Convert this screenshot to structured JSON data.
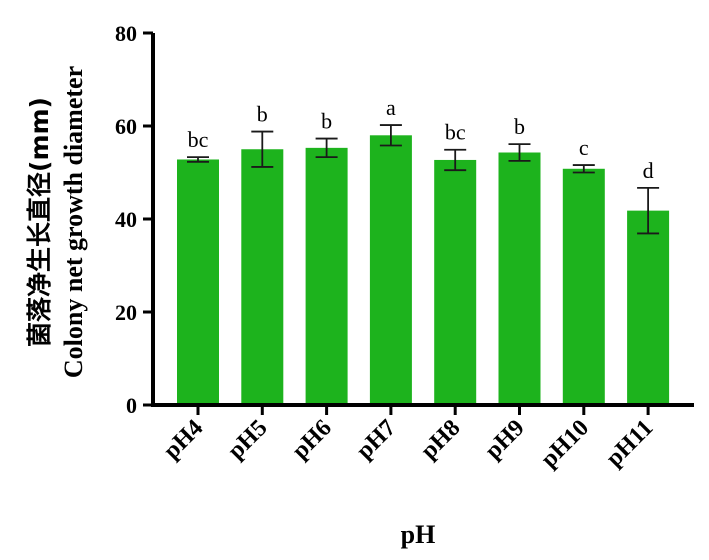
{
  "chart_data": {
    "type": "bar",
    "categories": [
      "pH4",
      "pH5",
      "pH6",
      "pH7",
      "pH8",
      "pH9",
      "pH10",
      "pH11"
    ],
    "values": [
      52.8,
      55.0,
      55.3,
      58.0,
      52.7,
      54.3,
      50.8,
      41.8
    ],
    "errors": [
      0.5,
      3.8,
      2.0,
      2.2,
      2.2,
      1.8,
      0.8,
      4.9
    ],
    "significance": [
      "bc",
      "b",
      "b",
      "a",
      "bc",
      "b",
      "c",
      "d"
    ],
    "xlabel": "pH",
    "ylabel_cn": "菌落净生长直径(mm)",
    "ylabel_en": "Colony net growth diameter",
    "ylim": [
      0,
      80
    ],
    "yticks": [
      0,
      20,
      40,
      60,
      80
    ],
    "bar_color": "#1db31d",
    "grid": false,
    "legend": "none"
  }
}
